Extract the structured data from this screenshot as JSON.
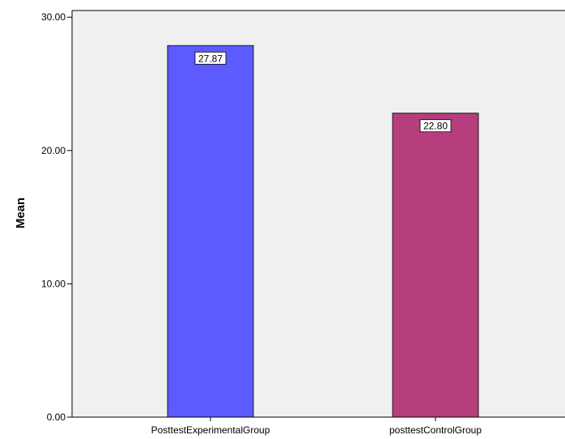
{
  "chart_data": {
    "type": "bar",
    "title": "",
    "xlabel": "",
    "ylabel": "Mean",
    "categories": [
      "PosttestExperimentalGroup",
      "posttestControlGroup"
    ],
    "values": [
      27.87,
      22.8
    ],
    "data_labels": [
      "27.87",
      "22.80"
    ],
    "yticks": [
      0,
      10,
      20,
      30
    ],
    "ytick_labels": [
      "0.00",
      "10.00",
      "20.00",
      "30.00"
    ],
    "ylim": [
      0,
      30.5
    ],
    "grid": false,
    "legend": "none",
    "colors": {
      "bars": [
        "#5b5bff",
        "#b73e7c"
      ],
      "plot_background": "#f0f0f0",
      "bar_outline": "#1a1a1a"
    }
  }
}
